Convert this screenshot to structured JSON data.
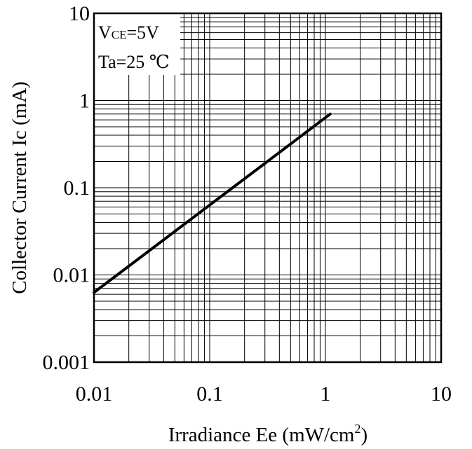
{
  "chart_data": {
    "type": "line",
    "xlabel": {
      "text": "Irradiance Ee (mW/cm",
      "sup": "2",
      "suffix": ")"
    },
    "ylabel": "Collector Current Ic (mA)",
    "x_scale": "log",
    "y_scale": "log",
    "xlim": [
      0.01,
      10
    ],
    "ylim": [
      0.001,
      10
    ],
    "x_ticks": [
      0.01,
      0.1,
      1,
      10
    ],
    "x_tick_labels": [
      "0.01",
      "0.1",
      "1",
      "10"
    ],
    "y_ticks": [
      0.001,
      0.01,
      0.1,
      1,
      10
    ],
    "y_tick_labels": [
      "0.001",
      "0.01",
      "0.1",
      "1",
      "10"
    ],
    "grid": true,
    "conditions": {
      "vce_prefix": "V",
      "vce_sub": "CE",
      "vce_value": "=5V",
      "ta": "Ta=25 ℃"
    },
    "series": [
      {
        "x": [
          0.01,
          1.1
        ],
        "y": [
          0.0063,
          0.7
        ],
        "color": "#000000"
      }
    ]
  }
}
